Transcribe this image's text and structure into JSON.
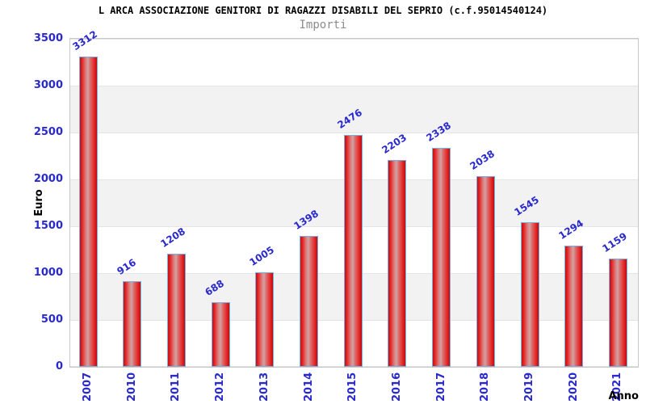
{
  "header": {
    "title": "L ARCA ASSOCIAZIONE GENITORI DI RAGAZZI DISABILI DEL SEPRIO (c.f.95014540124)",
    "subtitle": "Importi"
  },
  "chart_data": {
    "type": "bar",
    "title": "L ARCA ASSOCIAZIONE GENITORI DI RAGAZZI DISABILI DEL SEPRIO (c.f.95014540124)",
    "subtitle": "Importi",
    "xlabel": "Anno",
    "ylabel": "Euro",
    "categories": [
      "2007",
      "2010",
      "2011",
      "2012",
      "2013",
      "2014",
      "2015",
      "2016",
      "2017",
      "2018",
      "2019",
      "2020",
      "2021"
    ],
    "values": [
      3312,
      916,
      1208,
      688,
      1005,
      1398,
      2476,
      2203,
      2338,
      2038,
      1545,
      1294,
      1159
    ],
    "ylim": [
      0,
      3500
    ],
    "yticks": [
      0,
      500,
      1000,
      1500,
      2000,
      2500,
      3000,
      3500
    ],
    "grid": true,
    "legend": "none",
    "bands": "alternating horizontal stripes between gridlines",
    "value_labels": "above bars, rotated, blue",
    "colors": {
      "label_blue": "#2929cc",
      "title_text": "#000000",
      "subtitle_text": "#8c8c8c",
      "bar_border": "#74b2e2",
      "bar_gradient": [
        "#c01111 0%",
        "#e52222 12%",
        "#e07777 33%",
        "#cfa3a3 47%",
        "#dd6f6f 60%",
        "#e52222 86%",
        "#b90f0f 100%"
      ],
      "band": "#f2f2f2",
      "gridline": "#e4e4e4",
      "plot_border": "#c8c8c8"
    }
  }
}
